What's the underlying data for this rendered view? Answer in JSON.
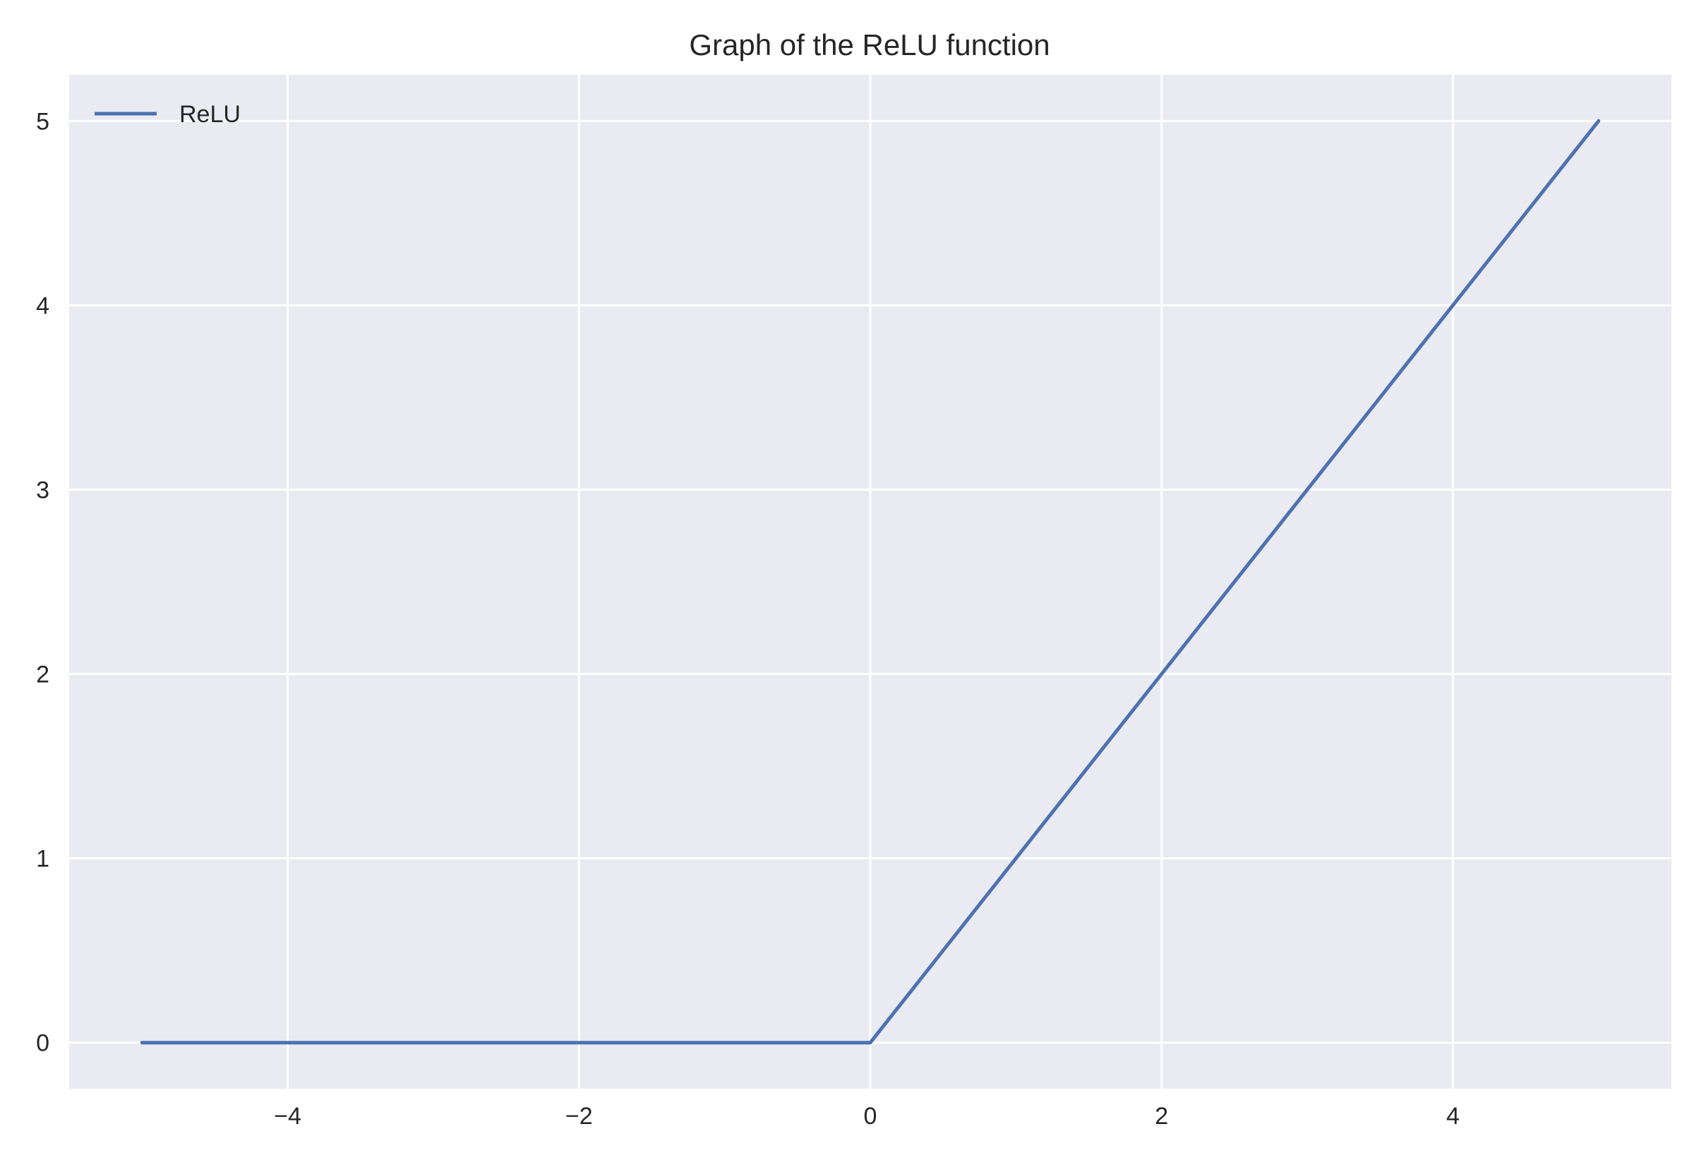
{
  "chart_data": {
    "type": "line",
    "title": "Graph of the ReLU function",
    "xlabel": "",
    "ylabel": "",
    "xlim": [
      -5.5,
      5.5
    ],
    "ylim": [
      -0.25,
      5.25
    ],
    "x_ticks": [
      -4,
      -2,
      0,
      2,
      4
    ],
    "x_tick_labels": [
      "−4",
      "−2",
      "0",
      "2",
      "4"
    ],
    "y_ticks": [
      0,
      1,
      2,
      3,
      4,
      5
    ],
    "y_tick_labels": [
      "0",
      "1",
      "2",
      "3",
      "4",
      "5"
    ],
    "grid": true,
    "legend_position": "top-left",
    "background_color": "#eaeaf2",
    "series": [
      {
        "name": "ReLU",
        "color": "#4c72b0",
        "x": [
          -5,
          0,
          5
        ],
        "y": [
          0,
          0,
          5
        ]
      }
    ]
  }
}
